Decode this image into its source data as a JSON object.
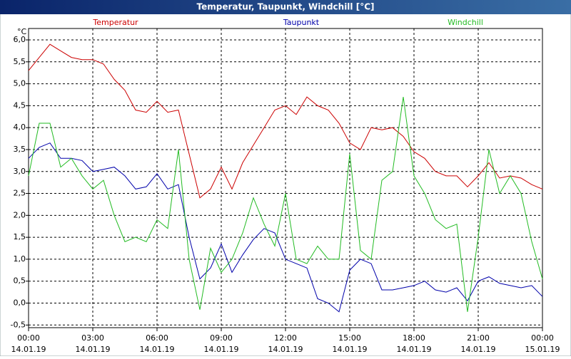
{
  "chart_data": {
    "type": "line",
    "title": "Temperatur, Taupunkt, Windchill [°C]",
    "y_unit": "°C",
    "x": [
      0,
      0.5,
      1,
      1.5,
      2,
      2.5,
      3,
      3.5,
      4,
      4.5,
      5,
      5.5,
      6,
      6.5,
      7,
      7.5,
      8,
      8.5,
      9,
      9.5,
      10,
      10.5,
      11,
      11.5,
      12,
      12.5,
      13,
      13.5,
      14,
      14.5,
      15,
      15.5,
      16,
      16.5,
      17,
      17.5,
      18,
      18.5,
      19,
      19.5,
      20,
      20.5,
      21,
      21.5,
      22,
      22.5,
      23,
      23.5,
      24
    ],
    "xlim": [
      0,
      24
    ],
    "xticks": [
      {
        "value": 0,
        "label": "00:00",
        "date": "14.01.19"
      },
      {
        "value": 3,
        "label": "03:00",
        "date": "14.01.19"
      },
      {
        "value": 6,
        "label": "06:00",
        "date": "14.01.19"
      },
      {
        "value": 9,
        "label": "09:00",
        "date": "14.01.19"
      },
      {
        "value": 12,
        "label": "12:00",
        "date": "14.01.19"
      },
      {
        "value": 15,
        "label": "15:00",
        "date": "14.01.19"
      },
      {
        "value": 18,
        "label": "18:00",
        "date": "14.01.19"
      },
      {
        "value": 21,
        "label": "21:00",
        "date": "14.01.19"
      },
      {
        "value": 24,
        "label": "00:00",
        "date": "15.01.19"
      }
    ],
    "ylim": [
      -0.56,
      6.26
    ],
    "yticks": [
      {
        "value": -0.5,
        "label": "-0,5"
      },
      {
        "value": 0,
        "label": "0,0"
      },
      {
        "value": 0.5,
        "label": "0,5"
      },
      {
        "value": 1,
        "label": "1,0"
      },
      {
        "value": 1.5,
        "label": "1,5"
      },
      {
        "value": 2,
        "label": "2,0"
      },
      {
        "value": 2.5,
        "label": "2,5"
      },
      {
        "value": 3,
        "label": "3,0"
      },
      {
        "value": 3.5,
        "label": "3,5"
      },
      {
        "value": 4,
        "label": "4,0"
      },
      {
        "value": 4.5,
        "label": "4,5"
      },
      {
        "value": 5,
        "label": "5,0"
      },
      {
        "value": 5.5,
        "label": "5,5"
      },
      {
        "value": 6,
        "label": "6,0"
      }
    ],
    "grid": true,
    "series": [
      {
        "name": "Temperatur",
        "color": "#cc0000",
        "values": [
          5.3,
          5.6,
          5.9,
          5.75,
          5.6,
          5.55,
          5.55,
          5.45,
          5.1,
          4.85,
          4.4,
          4.35,
          4.6,
          4.35,
          4.4,
          3.4,
          2.4,
          2.6,
          3.1,
          2.6,
          3.2,
          3.6,
          4.0,
          4.4,
          4.5,
          4.3,
          4.7,
          4.5,
          4.4,
          4.1,
          3.65,
          3.5,
          4.0,
          3.95,
          4.0,
          3.8,
          3.45,
          3.3,
          3.0,
          2.9,
          2.9,
          2.65,
          2.9,
          3.2,
          2.85,
          2.9,
          2.85,
          2.7,
          2.6
        ]
      },
      {
        "name": "Taupunkt",
        "color": "#0000aa",
        "values": [
          3.3,
          3.55,
          3.65,
          3.3,
          3.3,
          3.25,
          3.0,
          3.05,
          3.1,
          2.9,
          2.6,
          2.65,
          2.95,
          2.6,
          2.7,
          1.5,
          0.55,
          0.8,
          1.35,
          0.7,
          1.1,
          1.45,
          1.7,
          1.6,
          1.0,
          0.9,
          0.8,
          0.1,
          0.0,
          -0.2,
          0.75,
          1.0,
          0.9,
          0.3,
          0.3,
          0.35,
          0.4,
          0.5,
          0.3,
          0.25,
          0.35,
          0.05,
          0.5,
          0.6,
          0.45,
          0.4,
          0.35,
          0.4,
          0.15
        ]
      },
      {
        "name": "Windchill",
        "color": "#22bb22",
        "values": [
          2.9,
          4.1,
          4.1,
          3.1,
          3.3,
          2.9,
          2.6,
          2.8,
          2.0,
          1.4,
          1.5,
          1.4,
          1.9,
          1.7,
          3.5,
          1.0,
          -0.15,
          1.25,
          0.7,
          1.0,
          1.6,
          2.4,
          1.8,
          1.3,
          2.5,
          1.0,
          0.9,
          1.3,
          1.0,
          1.0,
          3.4,
          1.2,
          1.0,
          2.8,
          3.0,
          4.7,
          2.9,
          2.5,
          1.9,
          1.7,
          1.8,
          -0.2,
          1.5,
          3.5,
          2.5,
          2.9,
          2.5,
          1.4,
          0.55
        ]
      }
    ]
  }
}
